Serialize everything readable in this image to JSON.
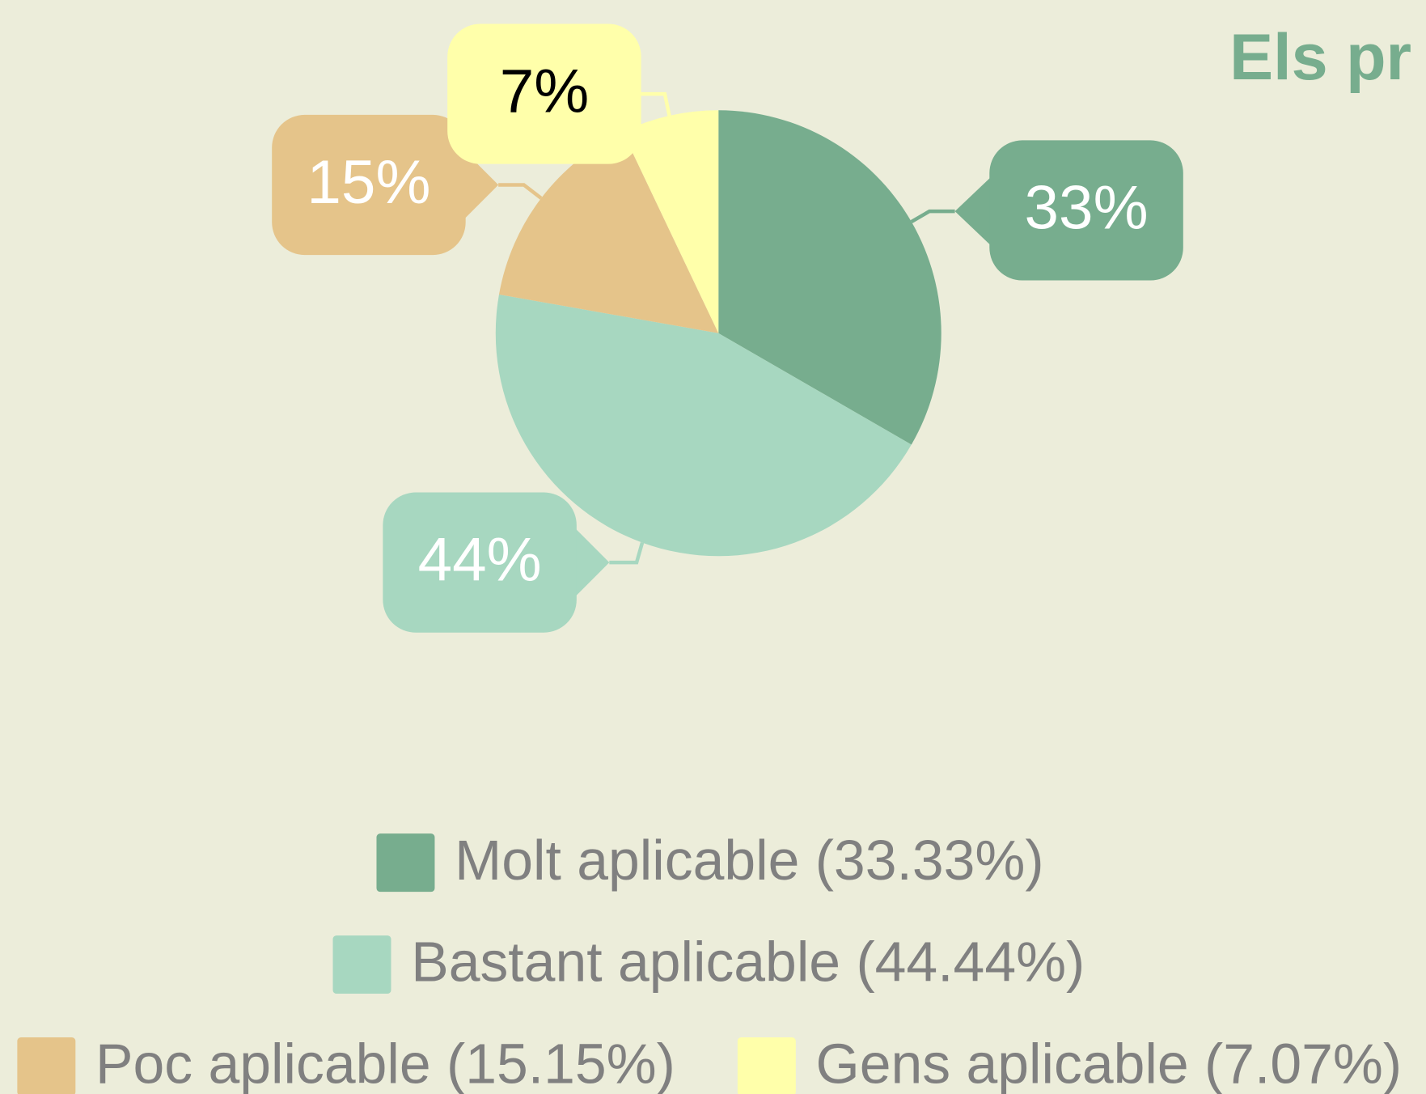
{
  "chart_data": {
    "type": "pie",
    "title": "Els pr",
    "categories": [
      "Molt aplicable (33.33%)",
      "Bastant aplicable (44.44%)",
      "Poc aplicable (15.15%)",
      "Gens aplicable (7.07%)"
    ],
    "values": [
      33.33,
      44.44,
      15.15,
      7.07
    ],
    "value_labels": [
      "33%",
      "44%",
      "15%",
      "7%"
    ],
    "colors": [
      "#77ad8e",
      "#a7d7c0",
      "#e5c48a",
      "#ffffaa"
    ],
    "label_colors": [
      "#ffffff",
      "#ffffff",
      "#ffffff",
      "#000000"
    ],
    "legend": "bottom"
  }
}
